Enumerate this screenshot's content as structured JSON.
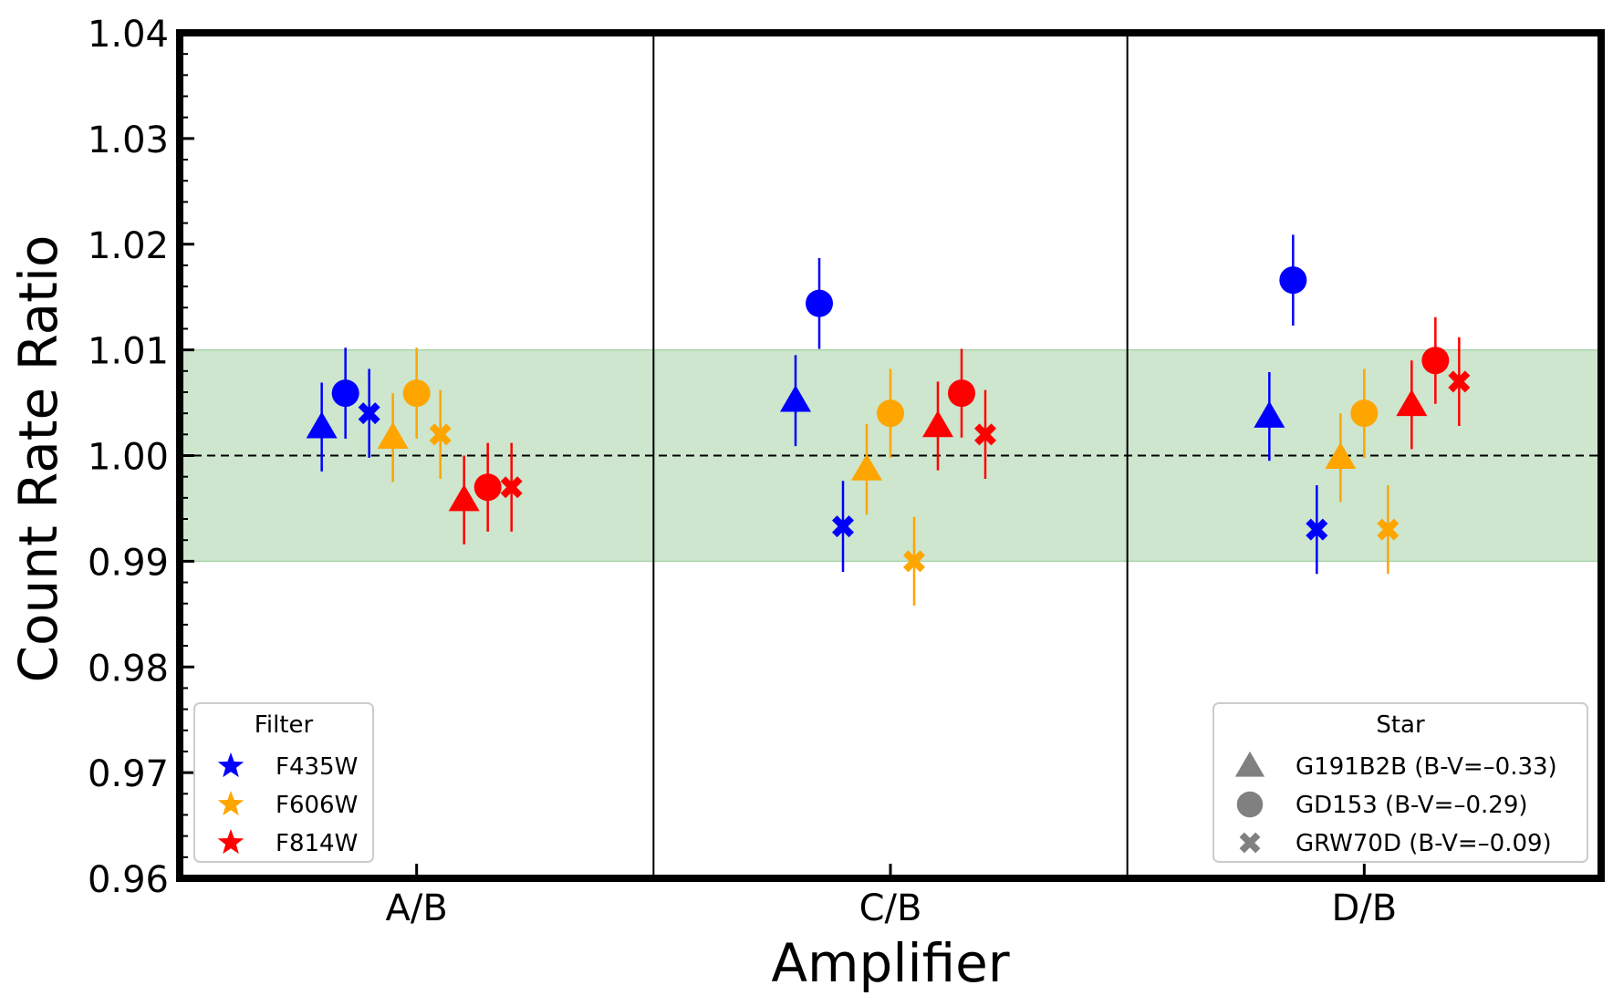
{
  "chart_data": {
    "type": "scatter",
    "title": "",
    "xlabel": "Amplifier",
    "ylabel": "Count Rate Ratio",
    "categories": [
      "A/B",
      "C/B",
      "D/B"
    ],
    "ylim": [
      0.96,
      1.04
    ],
    "yticks": [
      "0.96",
      "0.97",
      "0.98",
      "0.99",
      "1.00",
      "1.01",
      "1.02",
      "1.03",
      "1.04"
    ],
    "reference_line": 1.0,
    "tolerance_band": [
      0.99,
      1.01
    ],
    "band_color": "#cde6cd",
    "filters": [
      {
        "name": "F435W",
        "color": "#0000ff"
      },
      {
        "name": "F606W",
        "color": "#ffa500"
      },
      {
        "name": "F814W",
        "color": "#ff0000"
      }
    ],
    "stars": [
      {
        "name": "G191B2B (B-V=–0.33)",
        "marker": "triangle"
      },
      {
        "name": "GD153 (B-V=–0.29)",
        "marker": "circle"
      },
      {
        "name": "GRW70D (B-V=–0.09)",
        "marker": "x"
      }
    ],
    "legend_filter_title": "Filter",
    "legend_star_title": "Star",
    "legend_filter_placement": "lower-left",
    "legend_star_placement": "lower-right",
    "series": [
      {
        "filter": "F435W",
        "star": "G191B2B",
        "values": [
          1.0027,
          1.0052,
          1.0037
        ],
        "errors": [
          0.0042,
          0.0043,
          0.0042
        ]
      },
      {
        "filter": "F435W",
        "star": "GD153",
        "values": [
          1.0059,
          1.0144,
          1.0166
        ],
        "errors": [
          0.0043,
          0.0043,
          0.0043
        ]
      },
      {
        "filter": "F435W",
        "star": "GRW70D",
        "values": [
          1.004,
          0.9933,
          0.993
        ],
        "errors": [
          0.0042,
          0.0043,
          0.0042
        ]
      },
      {
        "filter": "F606W",
        "star": "G191B2B",
        "values": [
          1.0017,
          0.9987,
          0.9998
        ],
        "errors": [
          0.0042,
          0.0043,
          0.0042
        ]
      },
      {
        "filter": "F606W",
        "star": "GD153",
        "values": [
          1.0059,
          1.004,
          1.004
        ],
        "errors": [
          0.0043,
          0.0042,
          0.0042
        ]
      },
      {
        "filter": "F606W",
        "star": "GRW70D",
        "values": [
          1.002,
          0.99,
          0.993
        ],
        "errors": [
          0.0042,
          0.0042,
          0.0042
        ]
      },
      {
        "filter": "F814W",
        "star": "G191B2B",
        "values": [
          0.9958,
          1.0028,
          1.0048
        ],
        "errors": [
          0.0042,
          0.0042,
          0.0042
        ]
      },
      {
        "filter": "F814W",
        "star": "GD153",
        "values": [
          0.997,
          1.0059,
          1.009
        ],
        "errors": [
          0.0042,
          0.0042,
          0.0041
        ]
      },
      {
        "filter": "F814W",
        "star": "GRW70D",
        "values": [
          0.997,
          1.002,
          1.007
        ],
        "errors": [
          0.0042,
          0.0042,
          0.0042
        ]
      }
    ]
  }
}
